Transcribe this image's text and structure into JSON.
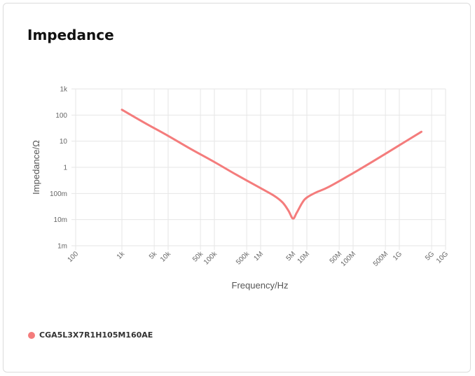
{
  "title": "Impedance",
  "chart_data": {
    "type": "line",
    "xlabel": "Frequency/Hz",
    "ylabel": "Impedance/Ω",
    "x_scale": "log",
    "y_scale": "log",
    "xlim": [
      100,
      10000000000
    ],
    "ylim": [
      0.001,
      1000
    ],
    "x_ticks": [
      {
        "value": 100,
        "label": "100"
      },
      {
        "value": 1000,
        "label": "1k"
      },
      {
        "value": 5000,
        "label": "5k"
      },
      {
        "value": 10000,
        "label": "10k"
      },
      {
        "value": 50000,
        "label": "50k"
      },
      {
        "value": 100000,
        "label": "100k"
      },
      {
        "value": 500000,
        "label": "500k"
      },
      {
        "value": 1000000,
        "label": "1M"
      },
      {
        "value": 5000000,
        "label": "5M"
      },
      {
        "value": 10000000,
        "label": "10M"
      },
      {
        "value": 50000000,
        "label": "50M"
      },
      {
        "value": 100000000,
        "label": "100M"
      },
      {
        "value": 500000000,
        "label": "500M"
      },
      {
        "value": 1000000000,
        "label": "1G"
      },
      {
        "value": 5000000000,
        "label": "5G"
      },
      {
        "value": 10000000000,
        "label": "10G"
      }
    ],
    "y_ticks": [
      {
        "value": 1000,
        "label": "1k"
      },
      {
        "value": 100,
        "label": "100"
      },
      {
        "value": 10,
        "label": "10"
      },
      {
        "value": 1,
        "label": "1"
      },
      {
        "value": 0.1,
        "label": "100m"
      },
      {
        "value": 0.01,
        "label": "10m"
      },
      {
        "value": 0.001,
        "label": "1m"
      }
    ],
    "grid": true,
    "legend_position": "bottom-left",
    "series": [
      {
        "name": "CGA5L3X7R1H105M160AE",
        "color": "#f47c7c",
        "x": [
          1000,
          3000,
          10000,
          30000,
          100000,
          300000,
          1000000,
          2000000,
          3000000,
          4000000,
          5000000,
          6000000,
          8000000,
          10000000,
          15000000,
          30000000,
          100000000,
          300000000,
          1000000000,
          3000000000
        ],
        "y": [
          160,
          52,
          16,
          5.2,
          1.6,
          0.52,
          0.16,
          0.08,
          0.045,
          0.022,
          0.011,
          0.018,
          0.045,
          0.07,
          0.105,
          0.18,
          0.6,
          1.9,
          7,
          23
        ]
      }
    ]
  }
}
